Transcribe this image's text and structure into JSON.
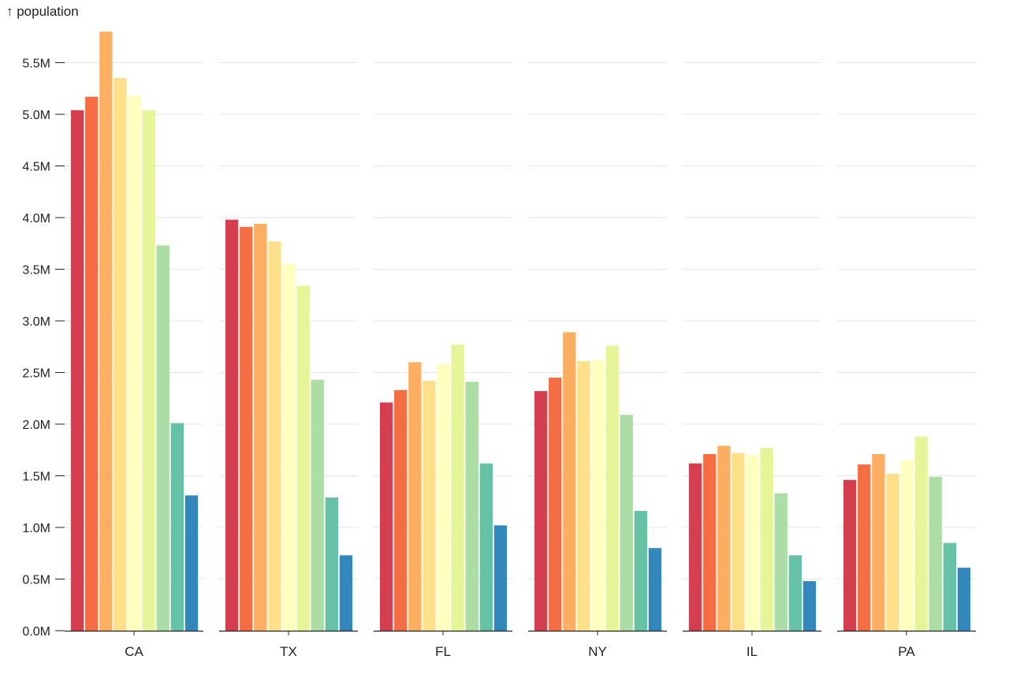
{
  "chart_data": {
    "type": "bar",
    "ylabel": "↑ population",
    "ylim": [
      0,
      5800000
    ],
    "y_ticks": [
      {
        "value": 0,
        "label": "0.0M"
      },
      {
        "value": 500000,
        "label": "0.5M"
      },
      {
        "value": 1000000,
        "label": "1.0M"
      },
      {
        "value": 1500000,
        "label": "1.5M"
      },
      {
        "value": 2000000,
        "label": "2.0M"
      },
      {
        "value": 2500000,
        "label": "2.5M"
      },
      {
        "value": 3000000,
        "label": "3.0M"
      },
      {
        "value": 3500000,
        "label": "3.5M"
      },
      {
        "value": 4000000,
        "label": "4.0M"
      },
      {
        "value": 4500000,
        "label": "4.5M"
      },
      {
        "value": 5000000,
        "label": "5.0M"
      },
      {
        "value": 5500000,
        "label": "5.5M"
      }
    ],
    "grid": true,
    "categories": [
      "CA",
      "TX",
      "FL",
      "NY",
      "IL",
      "PA"
    ],
    "colors": [
      "#d53e4f",
      "#f46d43",
      "#fdae61",
      "#fee08b",
      "#ffffbf",
      "#e6f598",
      "#abdda4",
      "#66c2a5",
      "#3288bd"
    ],
    "values": [
      [
        5040000,
        5170000,
        5800000,
        5350000,
        5180000,
        5040000,
        3730000,
        2010000,
        1310000
      ],
      [
        3980000,
        3910000,
        3940000,
        3770000,
        3550000,
        3340000,
        2430000,
        1290000,
        730000
      ],
      [
        2210000,
        2330000,
        2600000,
        2420000,
        2580000,
        2770000,
        2410000,
        1620000,
        1020000
      ],
      [
        2320000,
        2450000,
        2890000,
        2610000,
        2620000,
        2760000,
        2090000,
        1160000,
        800000
      ],
      [
        1620000,
        1710000,
        1790000,
        1720000,
        1700000,
        1770000,
        1330000,
        730000,
        480000
      ],
      [
        1460000,
        1610000,
        1710000,
        1520000,
        1650000,
        1880000,
        1490000,
        850000,
        610000
      ]
    ]
  }
}
